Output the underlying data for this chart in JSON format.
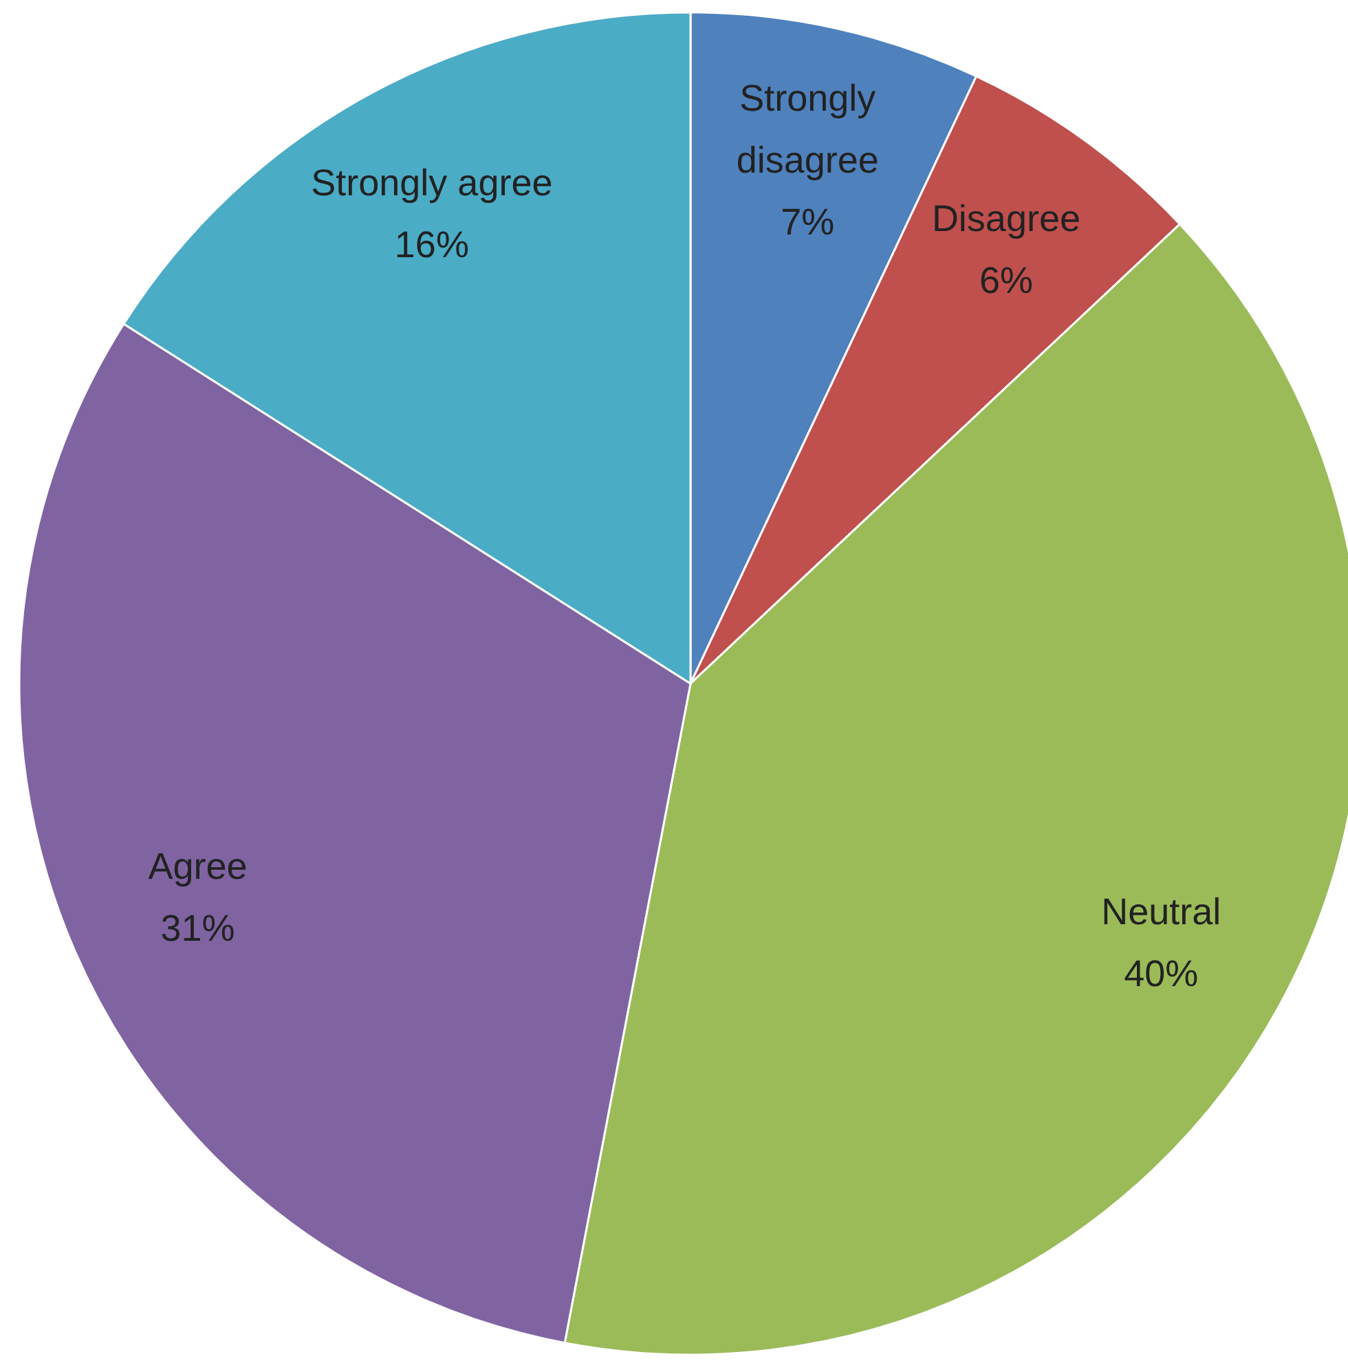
{
  "chart_data": {
    "type": "pie",
    "categories": [
      "Strongly disagree",
      "Disagree",
      "Neutral",
      "Agree",
      "Strongly agree"
    ],
    "values": [
      7,
      6,
      40,
      31,
      16
    ],
    "value_labels": [
      "7%",
      "6%",
      "40%",
      "31%",
      "16%"
    ],
    "colors": [
      "#4f81bd",
      "#c0504d",
      "#9bbb59",
      "#8064a2",
      "#4bacc6"
    ]
  }
}
